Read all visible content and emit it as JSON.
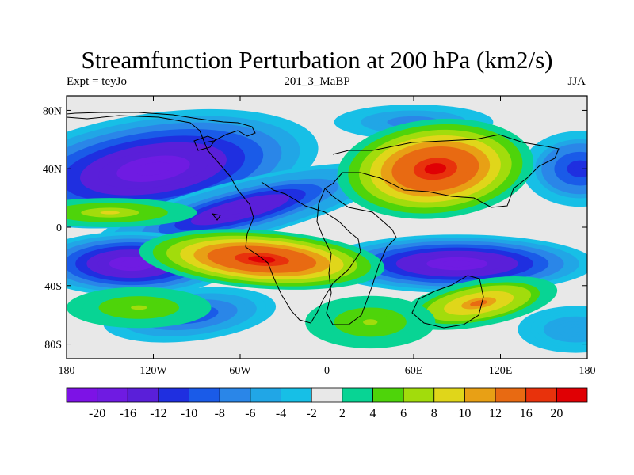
{
  "title": "Streamfunction Perturbation at 200 hPa (km2/s)",
  "subtitle_left": "Expt = teyJo",
  "subtitle_center": "201_3_MaBP",
  "subtitle_right": "JJA",
  "chart_data": {
    "type": "heatmap",
    "title": "Streamfunction Perturbation at 200 hPa (km2/s)",
    "x_ticks": [
      "180",
      "120W",
      "60W",
      "0",
      "60E",
      "120E",
      "180"
    ],
    "x_tick_values": [
      -180,
      -120,
      -60,
      0,
      60,
      120,
      180
    ],
    "y_ticks": [
      "80N",
      "40N",
      "0",
      "40S",
      "80S"
    ],
    "y_tick_values": [
      80,
      40,
      0,
      -40,
      -80
    ],
    "xlim": [
      -180,
      180
    ],
    "ylim": [
      -90,
      90
    ],
    "colorbar": {
      "labels": [
        "-20",
        "-16",
        "-12",
        "-10",
        "-8",
        "-6",
        "-4",
        "-2",
        "2",
        "4",
        "6",
        "8",
        "10",
        "12",
        "16",
        "20"
      ],
      "levels": [
        -20,
        -16,
        -12,
        -10,
        -8,
        -6,
        -4,
        -2,
        2,
        4,
        6,
        8,
        10,
        12,
        16,
        20
      ],
      "colors": [
        "#7d12e6",
        "#6f1be2",
        "#5a1fd9",
        "#1f2fe0",
        "#1a5be8",
        "#2a86e8",
        "#21a6e6",
        "#17bfe6",
        "#e8e8e8",
        "#08d494",
        "#4ed40a",
        "#a2dc0c",
        "#e0d61a",
        "#e8a015",
        "#e86a12",
        "#e8320c",
        "#e00004"
      ]
    },
    "features": [
      {
        "sign": "negative",
        "lon": -120,
        "lat": 40,
        "value": -20
      },
      {
        "sign": "negative",
        "lon": -60,
        "lat": 12,
        "value": -16
      },
      {
        "sign": "negative",
        "lon": 175,
        "lat": 40,
        "value": -12
      },
      {
        "sign": "negative",
        "lon": 60,
        "lat": 72,
        "value": -8
      },
      {
        "sign": "negative",
        "lon": -135,
        "lat": -25,
        "value": -20
      },
      {
        "sign": "negative",
        "lon": -95,
        "lat": -60,
        "value": -10
      },
      {
        "sign": "negative",
        "lon": 90,
        "lat": -25,
        "value": -20
      },
      {
        "sign": "negative",
        "lon": 172,
        "lat": -70,
        "value": -6
      },
      {
        "sign": "positive",
        "lon": 75,
        "lat": 40,
        "value": 20
      },
      {
        "sign": "positive",
        "lon": -45,
        "lat": -22,
        "value": 20
      },
      {
        "sign": "positive",
        "lon": -150,
        "lat": 10,
        "value": 8
      },
      {
        "sign": "positive",
        "lon": 105,
        "lat": -52,
        "value": 12
      },
      {
        "sign": "positive",
        "lon": 30,
        "lat": -65,
        "value": 6
      },
      {
        "sign": "positive",
        "lon": -130,
        "lat": -55,
        "value": 6
      }
    ]
  }
}
